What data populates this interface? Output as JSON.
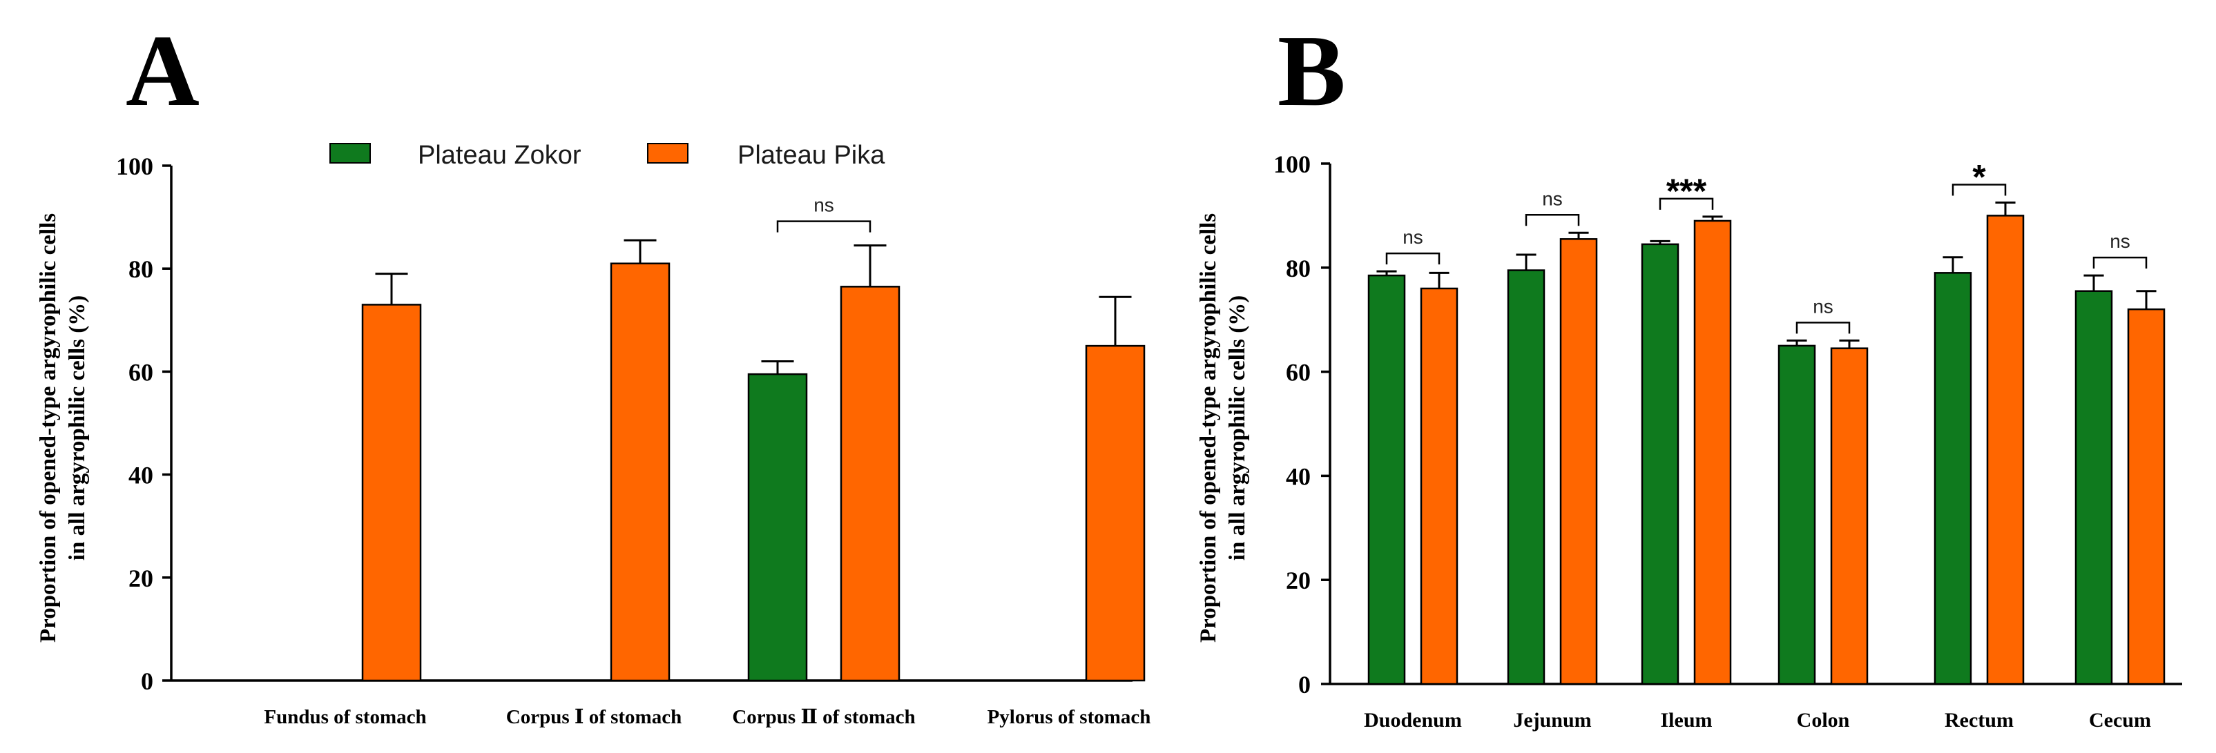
{
  "colors": {
    "zokor": "#0f7a1e",
    "pika": "#ff6600",
    "axis": "#000000"
  },
  "legend": [
    {
      "name": "Plateau Zokor",
      "color_key": "zokor"
    },
    {
      "name": "Plateau Pika",
      "color_key": "pika"
    }
  ],
  "chart_data": [
    {
      "panel": "A",
      "type": "bar",
      "ylabel_line1": "Proportion of opened-type argyrophilic cells",
      "ylabel_line2": "in all argyrophilic cells (%)",
      "ylim": [
        0,
        100
      ],
      "yticks": [
        "0",
        "20",
        "40",
        "60",
        "80",
        "100"
      ],
      "categories": [
        "Fundus of stomach",
        "Corpus Ⅰ of stomach",
        "Corpus  Ⅱ of stomach",
        "Pylorus of stomach"
      ],
      "series": [
        {
          "name": "Plateau Zokor",
          "values": [
            null,
            null,
            59.5,
            null
          ],
          "errors": [
            null,
            null,
            2.5,
            null
          ]
        },
        {
          "name": "Plateau Pika",
          "values": [
            73,
            81,
            76.5,
            65
          ],
          "errors": [
            6,
            4.5,
            8,
            9.5
          ]
        }
      ],
      "significance": [
        {
          "category_index": 2,
          "label": "ns"
        }
      ]
    },
    {
      "panel": "B",
      "type": "bar",
      "ylabel_line1": "Proportion of opened-type argyrophilic cells",
      "ylabel_line2": "in all argyrophilic cells (%)",
      "ylim": [
        0,
        100
      ],
      "yticks": [
        "0",
        "20",
        "40",
        "60",
        "80",
        "100"
      ],
      "categories": [
        "Duodenum",
        "Jejunum",
        "Ileum",
        "Colon",
        "Rectum",
        "Cecum"
      ],
      "series": [
        {
          "name": "Plateau Zokor",
          "values": [
            78.5,
            79.5,
            84.5,
            65,
            79,
            75.5
          ],
          "errors": [
            0.8,
            3,
            0.6,
            1,
            3,
            3
          ]
        },
        {
          "name": "Plateau Pika",
          "values": [
            76,
            85.5,
            89,
            64.5,
            90,
            72
          ],
          "errors": [
            3,
            1.2,
            0.8,
            1.5,
            2.5,
            3.5
          ]
        }
      ],
      "significance": [
        {
          "category_index": 0,
          "label": "ns"
        },
        {
          "category_index": 1,
          "label": "ns"
        },
        {
          "category_index": 2,
          "label": "***"
        },
        {
          "category_index": 3,
          "label": "ns"
        },
        {
          "category_index": 4,
          "label": "*"
        },
        {
          "category_index": 5,
          "label": "ns"
        }
      ]
    }
  ]
}
